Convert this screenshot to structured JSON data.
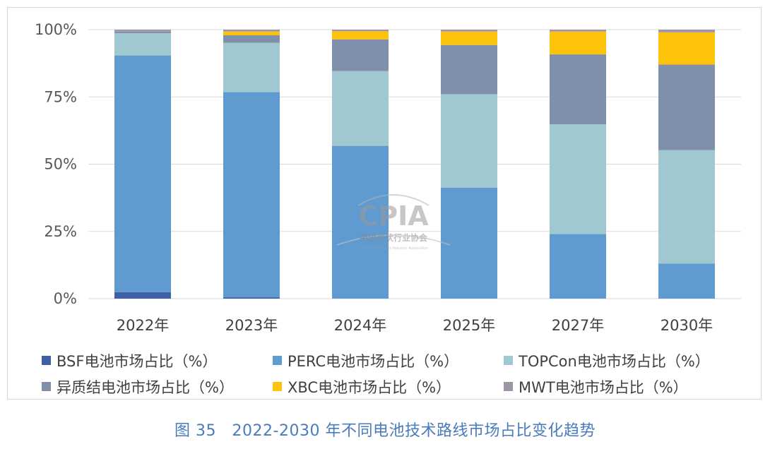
{
  "chart_data": {
    "type": "bar",
    "stacked": true,
    "percent": true,
    "categories": [
      "2022年",
      "2023年",
      "2024年",
      "2025年",
      "2027年",
      "2030年"
    ],
    "ylim": [
      0,
      100
    ],
    "yticks": [
      "0%",
      "25%",
      "50%",
      "75%",
      "100%"
    ],
    "grid": true,
    "legend_position": "bottom",
    "series": [
      {
        "name": "BSF电池市场占比（%）",
        "color": "#3f5fa8",
        "values": [
          2.4,
          0.5,
          0,
          0,
          0,
          0
        ]
      },
      {
        "name": "PERC电池市场占比（%）",
        "color": "#5f9bd0",
        "values": [
          88.0,
          76.3,
          56.8,
          41.2,
          24.0,
          13.0
        ]
      },
      {
        "name": "TOPCon电池市场占比（%）",
        "color": "#9fc8d0",
        "values": [
          8.3,
          18.3,
          27.8,
          34.8,
          40.8,
          42.2
        ]
      },
      {
        "name": "异质结电池市场占比（%）",
        "color": "#8090ab",
        "values": [
          0.6,
          2.8,
          11.8,
          18.3,
          26.0,
          31.8
        ]
      },
      {
        "name": "XBC电池市场占比（%）",
        "color": "#fcc30a",
        "values": [
          0,
          1.4,
          3.0,
          5.0,
          8.5,
          12.0
        ]
      },
      {
        "name": "MWT电池市场占比（%）",
        "color": "#a095a6",
        "values": [
          0.7,
          0.7,
          0.6,
          0.7,
          0.7,
          1.0
        ]
      }
    ]
  },
  "watermark": {
    "logo_text": "CPIA",
    "name_cn": "中国光伏行业协会",
    "name_en": "China Photovoltaic Industry Association"
  },
  "caption": "图 35　2022-2030 年不同电池技术路线市场占比变化趋势"
}
